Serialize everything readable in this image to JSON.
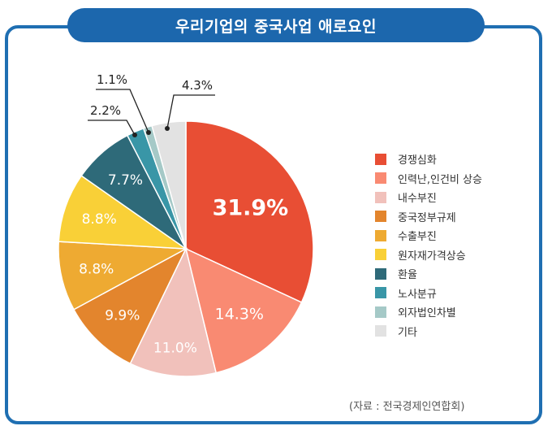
{
  "title": "우리기업의 중국사업 애로요인",
  "source": "(자료 : 전국경제인연합회)",
  "chart_data": {
    "type": "pie",
    "title": "우리기업의 중국사업 애로요인",
    "unit": "%",
    "legend_position": "right",
    "slices": [
      {
        "label": "경쟁심화",
        "value": 31.9,
        "display": "31.9%",
        "color": "#e84e34"
      },
      {
        "label": "인력난,인건비 상승",
        "value": 14.3,
        "display": "14.3%",
        "color": "#f98a72"
      },
      {
        "label": "내수부진",
        "value": 11.0,
        "display": "11.0%",
        "color": "#f1c1bb"
      },
      {
        "label": "중국정부규제",
        "value": 9.9,
        "display": "9.9%",
        "color": "#e3852d"
      },
      {
        "label": "수출부진",
        "value": 8.8,
        "display": "8.8%",
        "color": "#eeaa32"
      },
      {
        "label": "원자재가격상승",
        "value": 8.8,
        "display": "8.8%",
        "color": "#f9d037"
      },
      {
        "label": "환율",
        "value": 7.7,
        "display": "7.7%",
        "color": "#2e6a79"
      },
      {
        "label": "노사분규",
        "value": 2.2,
        "display": "2.2%",
        "color": "#3996a7"
      },
      {
        "label": "외자법인차별",
        "value": 1.1,
        "display": "1.1%",
        "color": "#a5c9c7"
      },
      {
        "label": "기타",
        "value": 4.3,
        "display": "4.3%",
        "color": "#e2e2e2"
      }
    ]
  }
}
